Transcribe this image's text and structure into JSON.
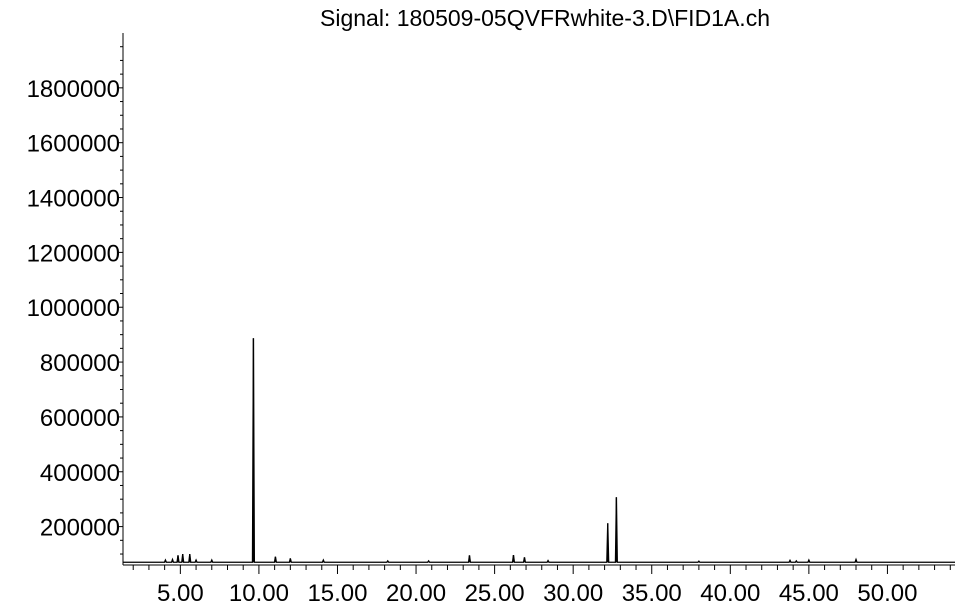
{
  "chart_data": {
    "type": "line",
    "title": "Signal: 180509-05QVFRwhite-3.D\\FID1A.ch",
    "xlabel": "",
    "ylabel": "",
    "xlim": [
      1.35,
      54.3
    ],
    "ylim": [
      60000,
      2000000
    ],
    "grid": false,
    "legend": "none",
    "line_color": "#000000",
    "baseline": 70000,
    "x_ticks": [
      5,
      10,
      15,
      20,
      25,
      30,
      35,
      40,
      45,
      50
    ],
    "x_tick_labels": [
      "5.00",
      "10.00",
      "15.00",
      "20.00",
      "25.00",
      "30.00",
      "35.00",
      "40.00",
      "45.00",
      "50.00"
    ],
    "y_ticks": [
      200000,
      400000,
      600000,
      800000,
      1000000,
      1200000,
      1400000,
      1600000,
      1800000
    ],
    "y_tick_labels": [
      "200000",
      "400000",
      "600000",
      "800000",
      "1000000",
      "1200000",
      "1400000",
      "1600000",
      "1800000"
    ],
    "series": [
      {
        "peaks": [
          {
            "x": 4.05,
            "y": 78000
          },
          {
            "x": 4.5,
            "y": 80000
          },
          {
            "x": 4.85,
            "y": 95000
          },
          {
            "x": 5.15,
            "y": 100000
          },
          {
            "x": 5.6,
            "y": 100000
          },
          {
            "x": 6.0,
            "y": 78000
          },
          {
            "x": 7.0,
            "y": 78000
          },
          {
            "x": 9.65,
            "y": 887000
          },
          {
            "x": 11.05,
            "y": 90000
          },
          {
            "x": 12.0,
            "y": 84000
          },
          {
            "x": 14.1,
            "y": 78000
          },
          {
            "x": 18.2,
            "y": 75000
          },
          {
            "x": 20.8,
            "y": 75000
          },
          {
            "x": 23.4,
            "y": 95000
          },
          {
            "x": 26.2,
            "y": 96000
          },
          {
            "x": 26.9,
            "y": 88000
          },
          {
            "x": 28.4,
            "y": 76000
          },
          {
            "x": 32.2,
            "y": 212000
          },
          {
            "x": 32.75,
            "y": 307000
          },
          {
            "x": 38.0,
            "y": 74000
          },
          {
            "x": 43.8,
            "y": 77000
          },
          {
            "x": 44.2,
            "y": 75000
          },
          {
            "x": 45.0,
            "y": 78000
          },
          {
            "x": 48.0,
            "y": 80000
          }
        ]
      }
    ]
  }
}
